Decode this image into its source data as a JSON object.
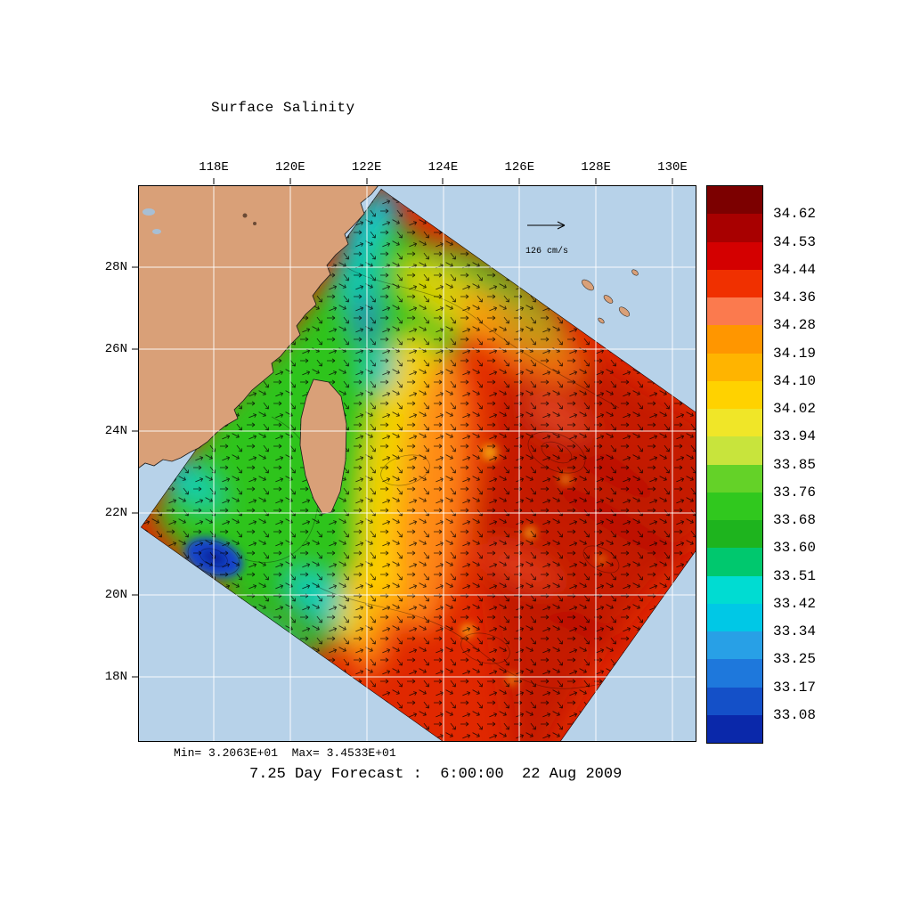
{
  "title": "Surface Salinity",
  "colors": {
    "ocean": "#b7d2e9",
    "land": "#d9a078",
    "lake": "#a8bfd4",
    "grid": "#ffffff",
    "frame": "#000000"
  },
  "map": {
    "lon_ticks": [
      "118E",
      "120E",
      "122E",
      "124E",
      "126E",
      "128E",
      "130E"
    ],
    "lat_ticks": [
      "28N",
      "26N",
      "24N",
      "22N",
      "20N",
      "18N"
    ],
    "vector_scale_label": "126 cm/s",
    "minmax_label": "Min= 3.2063E+01  Max= 3.4533E+01",
    "footer": "7.25 Day Forecast :  6:00:00  22 Aug 2009"
  },
  "colorbar": {
    "labels": [
      "34.62",
      "34.53",
      "34.44",
      "34.36",
      "34.28",
      "34.19",
      "34.10",
      "34.02",
      "33.94",
      "33.85",
      "33.76",
      "33.68",
      "33.60",
      "33.51",
      "33.42",
      "33.34",
      "33.25",
      "33.17",
      "33.08"
    ],
    "colors": [
      "#7c0000",
      "#a80000",
      "#d40000",
      "#f03000",
      "#fb7a4e",
      "#ff9600",
      "#ffb400",
      "#ffd200",
      "#f0e628",
      "#c8e43c",
      "#64d228",
      "#30c81e",
      "#1eb41e",
      "#00c86e",
      "#00dcd2",
      "#00c8e6",
      "#28a0e6",
      "#1e78dc",
      "#1450c8",
      "#0a28aa"
    ]
  },
  "chart_data": {
    "type": "heatmap",
    "title": "Surface Salinity",
    "x_ticks": [
      "118E",
      "120E",
      "122E",
      "124E",
      "126E",
      "128E",
      "130E"
    ],
    "y_ticks": [
      "28N",
      "26N",
      "24N",
      "22N",
      "20N",
      "18N"
    ],
    "colorbar_levels": [
      34.62,
      34.53,
      34.44,
      34.36,
      34.28,
      34.19,
      34.1,
      34.02,
      33.94,
      33.85,
      33.76,
      33.68,
      33.6,
      33.51,
      33.42,
      33.34,
      33.25,
      33.17,
      33.08
    ],
    "data_min": 32.063,
    "data_max": 34.533,
    "vector_reference": "126 cm/s",
    "caption": "7.25 Day Forecast :  6:00:00  22 Aug 2009",
    "legend_position": "right",
    "grid": true,
    "description": "Ocean model surface salinity field with current vectors over the Taiwan Strait / western Pacific; rotated model domain colored blue (fresh) to dark red (salty)."
  }
}
